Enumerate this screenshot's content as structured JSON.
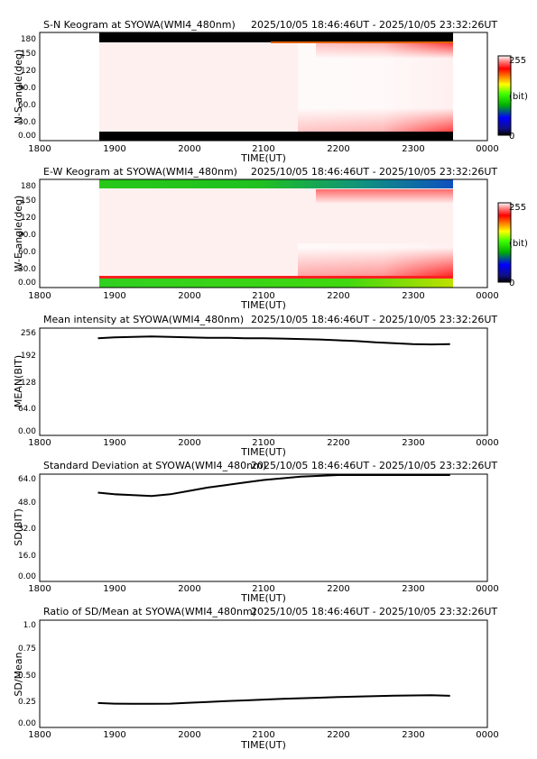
{
  "time_range": "2025/10/05 18:46:46UT - 2025/10/05 23:32:26UT",
  "xlabel": "TIME(UT)",
  "x_ticks": [
    "1800",
    "1900",
    "2000",
    "2100",
    "2200",
    "2300",
    "0000"
  ],
  "colorbar": {
    "max_label": "255",
    "unit_label": "(bit)",
    "min_label": "0"
  },
  "colors": {
    "image_base": "#fff0f0",
    "trace": "#000000",
    "axes": "#000000"
  },
  "chart_data": [
    {
      "type": "heatmap",
      "title": "S-N Keogram at SYOWA(WMI4_480nm)",
      "ylabel": "N-S angle(deg)",
      "y_ticks": [
        "180",
        "150",
        "120",
        "90.0",
        "60.0",
        "30.0",
        "0.00"
      ],
      "ylim": [
        0,
        180
      ],
      "xlim": [
        "18:00",
        "24:00"
      ],
      "data_range": [
        "18:46:46",
        "23:32:26"
      ],
      "value_range": [
        0,
        255
      ]
    },
    {
      "type": "heatmap",
      "title": "E-W Keogram at SYOWA(WMI4_480nm)",
      "ylabel": "W-E angle(deg)",
      "y_ticks": [
        "180",
        "150",
        "120",
        "90.0",
        "60.0",
        "30.0",
        "0.00"
      ],
      "ylim": [
        0,
        180
      ],
      "xlim": [
        "18:00",
        "24:00"
      ],
      "data_range": [
        "18:46:46",
        "23:32:26"
      ],
      "value_range": [
        0,
        255
      ]
    },
    {
      "type": "line",
      "title": "Mean intensity at SYOWA(WMI4_480nm)",
      "ylabel": "MEAN(BIT)",
      "y_ticks": [
        "256",
        "192",
        "128",
        "64.0",
        "0.00"
      ],
      "ylim": [
        0,
        256
      ],
      "xlim": [
        18,
        24
      ],
      "x": [
        18.78,
        19.0,
        19.25,
        19.5,
        19.75,
        20.0,
        20.25,
        20.5,
        20.75,
        21.0,
        21.25,
        21.5,
        21.75,
        22.0,
        22.25,
        22.5,
        22.75,
        23.0,
        23.25,
        23.5
      ],
      "y": [
        232,
        234,
        235,
        236,
        235,
        234,
        233,
        233,
        232,
        232,
        231,
        230,
        229,
        227,
        225,
        222,
        220,
        218,
        217,
        218
      ]
    },
    {
      "type": "line",
      "title": "Standard Deviation at SYOWA(WMI4_480nm)",
      "ylabel": "SD(BIT)",
      "y_ticks": [
        "64.0",
        "48.0",
        "32.0",
        "16.0",
        "0.00"
      ],
      "ylim": [
        0,
        64
      ],
      "xlim": [
        18,
        24
      ],
      "x": [
        18.78,
        19.0,
        19.25,
        19.5,
        19.75,
        20.0,
        20.25,
        20.5,
        20.75,
        21.0,
        21.25,
        21.5,
        21.75,
        22.0,
        22.25,
        22.5,
        22.75,
        23.0,
        23.25,
        23.5
      ],
      "y": [
        53,
        52,
        51.5,
        51,
        52,
        54,
        56,
        57.5,
        59,
        60.5,
        61.5,
        62.5,
        63,
        63.5,
        64,
        64.5,
        65,
        65,
        65,
        65
      ]
    },
    {
      "type": "line",
      "title": "Ratio of SD/Mean at SYOWA(WMI4_480nm)",
      "ylabel": "SD/Mean",
      "y_ticks": [
        "1.0",
        "0.75",
        "0.50",
        "0.25",
        "0.00"
      ],
      "ylim": [
        0,
        1
      ],
      "xlim": [
        18,
        24
      ],
      "x": [
        18.78,
        19.0,
        19.25,
        19.5,
        19.75,
        20.0,
        20.25,
        20.5,
        20.75,
        21.0,
        21.25,
        21.5,
        21.75,
        22.0,
        22.25,
        22.5,
        22.75,
        23.0,
        23.25,
        23.5
      ],
      "y": [
        0.228,
        0.222,
        0.22,
        0.22,
        0.222,
        0.23,
        0.238,
        0.245,
        0.252,
        0.26,
        0.266,
        0.272,
        0.277,
        0.283,
        0.288,
        0.292,
        0.296,
        0.298,
        0.3,
        0.295
      ]
    }
  ]
}
